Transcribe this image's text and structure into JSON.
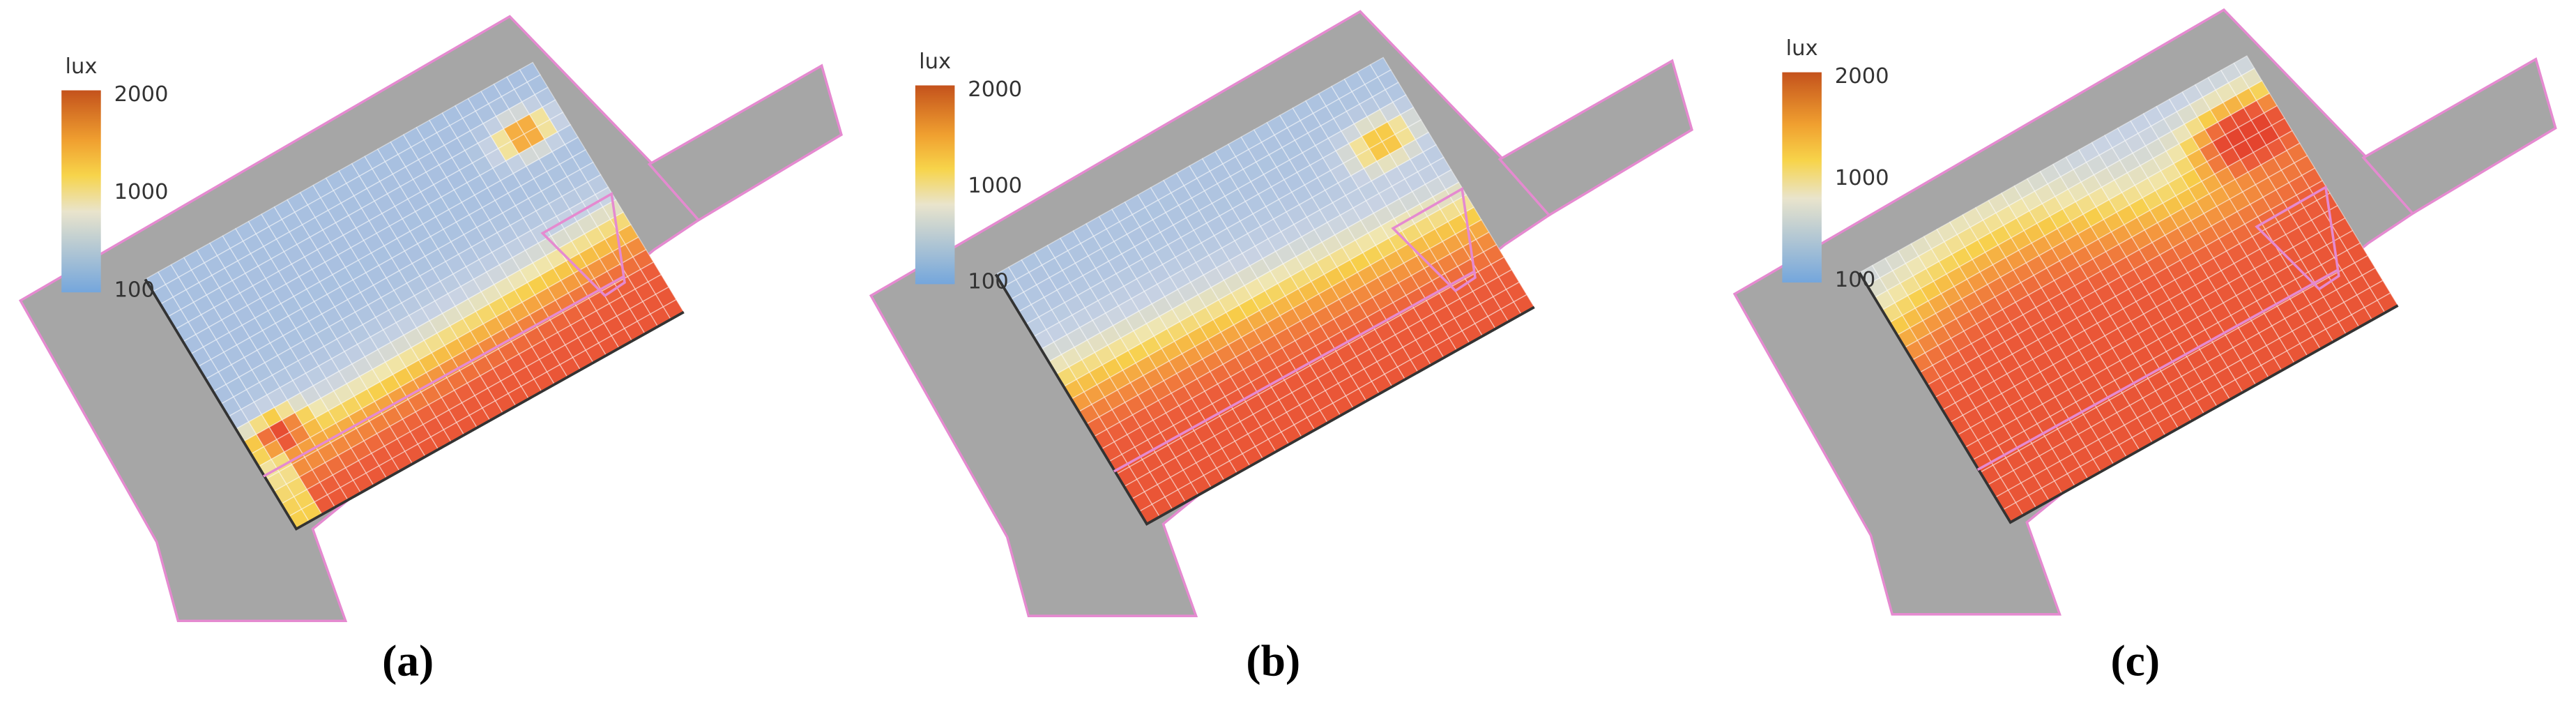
{
  "panels": [
    {
      "label": "(a)",
      "legend": {
        "unit": "lux",
        "ticks": [
          2000,
          1000,
          100
        ]
      }
    },
    {
      "label": "(b)",
      "legend": {
        "unit": "lux",
        "ticks": [
          2000,
          1000,
          100
        ]
      }
    },
    {
      "label": "(c)",
      "legend": {
        "unit": "lux",
        "ticks": [
          2000,
          1000,
          100
        ]
      }
    }
  ]
}
